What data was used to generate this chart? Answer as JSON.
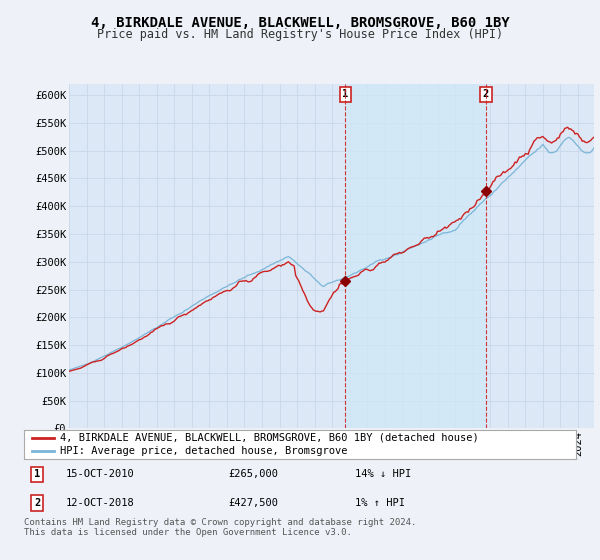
{
  "title": "4, BIRKDALE AVENUE, BLACKWELL, BROMSGROVE, B60 1BY",
  "subtitle": "Price paid vs. HM Land Registry's House Price Index (HPI)",
  "ylim": [
    0,
    620000
  ],
  "yticks": [
    0,
    50000,
    100000,
    150000,
    200000,
    250000,
    300000,
    350000,
    400000,
    450000,
    500000,
    550000,
    600000
  ],
  "ytick_labels": [
    "£0",
    "£50K",
    "£100K",
    "£150K",
    "£200K",
    "£250K",
    "£300K",
    "£350K",
    "£400K",
    "£450K",
    "£500K",
    "£550K",
    "£600K"
  ],
  "hpi_color": "#7ab5d8",
  "price_color": "#cc2222",
  "shade_color": "#d0e8f8",
  "marker_dot_color": "#8b0000",
  "idx1": 189,
  "idx2": 285,
  "price1": 265000,
  "price2": 427500,
  "legend_line1": "4, BIRKDALE AVENUE, BLACKWELL, BROMSGROVE, B60 1BY (detached house)",
  "legend_line2": "HPI: Average price, detached house, Bromsgrove",
  "row1_label": "1",
  "row1_date": "15-OCT-2010",
  "row1_price": "£265,000",
  "row1_hpi": "14% ↓ HPI",
  "row2_label": "2",
  "row2_date": "12-OCT-2018",
  "row2_price": "£427,500",
  "row2_hpi": "1% ↑ HPI",
  "footnote": "Contains HM Land Registry data © Crown copyright and database right 2024.\nThis data is licensed under the Open Government Licence v3.0.",
  "bg_color": "#eef2f8",
  "plot_bg": "#dce8f5",
  "grid_color": "#c8d8e8",
  "title_fontsize": 10,
  "subtitle_fontsize": 8.5,
  "tick_fontsize": 7.5,
  "legend_fontsize": 7.5,
  "footnote_fontsize": 6.5
}
